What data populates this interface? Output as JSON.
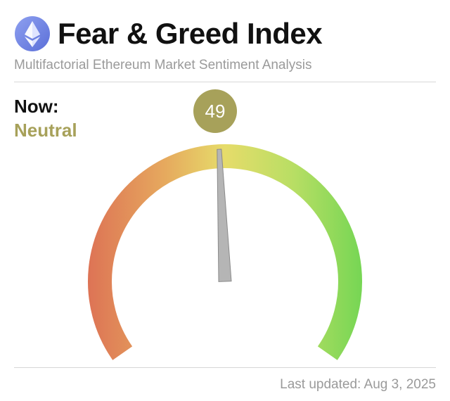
{
  "header": {
    "logo_icon": "ethereum-icon",
    "title": "Fear & Greed Index",
    "subtitle": "Multifactorial Ethereum Market Sentiment Analysis"
  },
  "current": {
    "now_label": "Now:",
    "sentiment": "Neutral",
    "value": "49",
    "value_number": 49,
    "scale_min": 0,
    "scale_max": 100
  },
  "colors": {
    "accent": "#a7a15a",
    "fear": "#e07a5a",
    "neutral": "#e6dc6a",
    "greed": "#7fd65a",
    "needle": "#b5b5b5"
  },
  "footer": {
    "last_updated": "Last updated: Aug 3, 2025"
  }
}
